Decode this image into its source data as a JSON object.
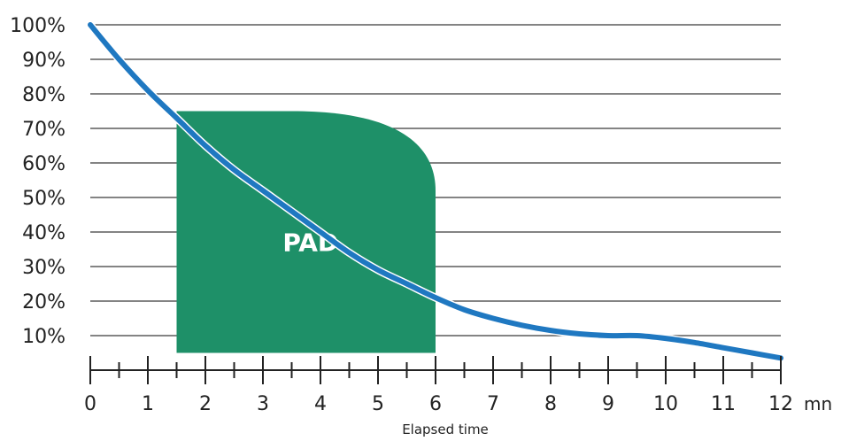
{
  "chart_data": {
    "type": "line",
    "title": "",
    "xlabel": "Elapsed time",
    "x_unit": "mn",
    "ylabel": "",
    "xlim": [
      0,
      12
    ],
    "ylim": [
      0,
      100
    ],
    "x_ticks": [
      "0",
      "1",
      "2",
      "3",
      "4",
      "5",
      "6",
      "7",
      "8",
      "9",
      "10",
      "11",
      "12"
    ],
    "y_ticks": [
      "10%",
      "20%",
      "30%",
      "40%",
      "50%",
      "60%",
      "70%",
      "80%",
      "90%",
      "100%"
    ],
    "grid": "horizontal",
    "line_color": "#1f78c1",
    "series": [
      {
        "x": [
          0,
          0.5,
          1,
          1.5,
          2,
          2.5,
          3,
          3.5,
          4,
          4.5,
          5,
          5.5,
          6,
          6.5,
          7,
          7.5,
          8,
          8.5,
          9,
          9.5,
          10,
          10.5,
          11,
          11.5,
          12
        ],
        "values": [
          100,
          90,
          81,
          73,
          65,
          58,
          52,
          46,
          40,
          34,
          29,
          25,
          21,
          17.5,
          15,
          13,
          11.5,
          10.5,
          10,
          10,
          9.2,
          8,
          6.5,
          5,
          3.5
        ]
      }
    ],
    "region": {
      "label": "PAD",
      "color": "#1e9068",
      "x_start": 1.5,
      "x_end": 6,
      "y_bottom": 5,
      "y_top": 75
    }
  }
}
